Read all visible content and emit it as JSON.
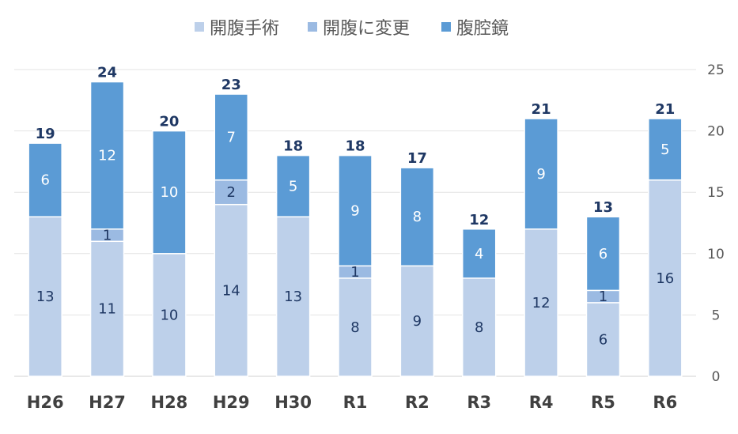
{
  "chart_data": {
    "type": "bar",
    "stacked": true,
    "categories": [
      "H26",
      "H27",
      "H28",
      "H29",
      "H30",
      "R1",
      "R2",
      "R3",
      "R4",
      "R5",
      "R6"
    ],
    "series": [
      {
        "name": "開腹手術",
        "color": "#bdd0ea",
        "values": [
          13,
          11,
          10,
          14,
          13,
          8,
          9,
          8,
          12,
          6,
          16
        ]
      },
      {
        "name": "開腹に変更",
        "color": "#9bbae2",
        "values": [
          0,
          1,
          0,
          2,
          0,
          1,
          0,
          0,
          0,
          1,
          0
        ]
      },
      {
        "name": "腹腔鏡",
        "color": "#5b9bd5",
        "values": [
          6,
          12,
          10,
          7,
          5,
          9,
          8,
          4,
          9,
          6,
          5
        ]
      }
    ],
    "totals": [
      19,
      24,
      20,
      23,
      18,
      18,
      17,
      12,
      21,
      13,
      21
    ],
    "ylim": [
      0,
      25
    ],
    "yticks": [
      0,
      5,
      10,
      15,
      20,
      25
    ],
    "y_axis_side": "right",
    "grid": true,
    "legend_position": "top-center",
    "title": "",
    "xlabel": "",
    "ylabel": ""
  }
}
